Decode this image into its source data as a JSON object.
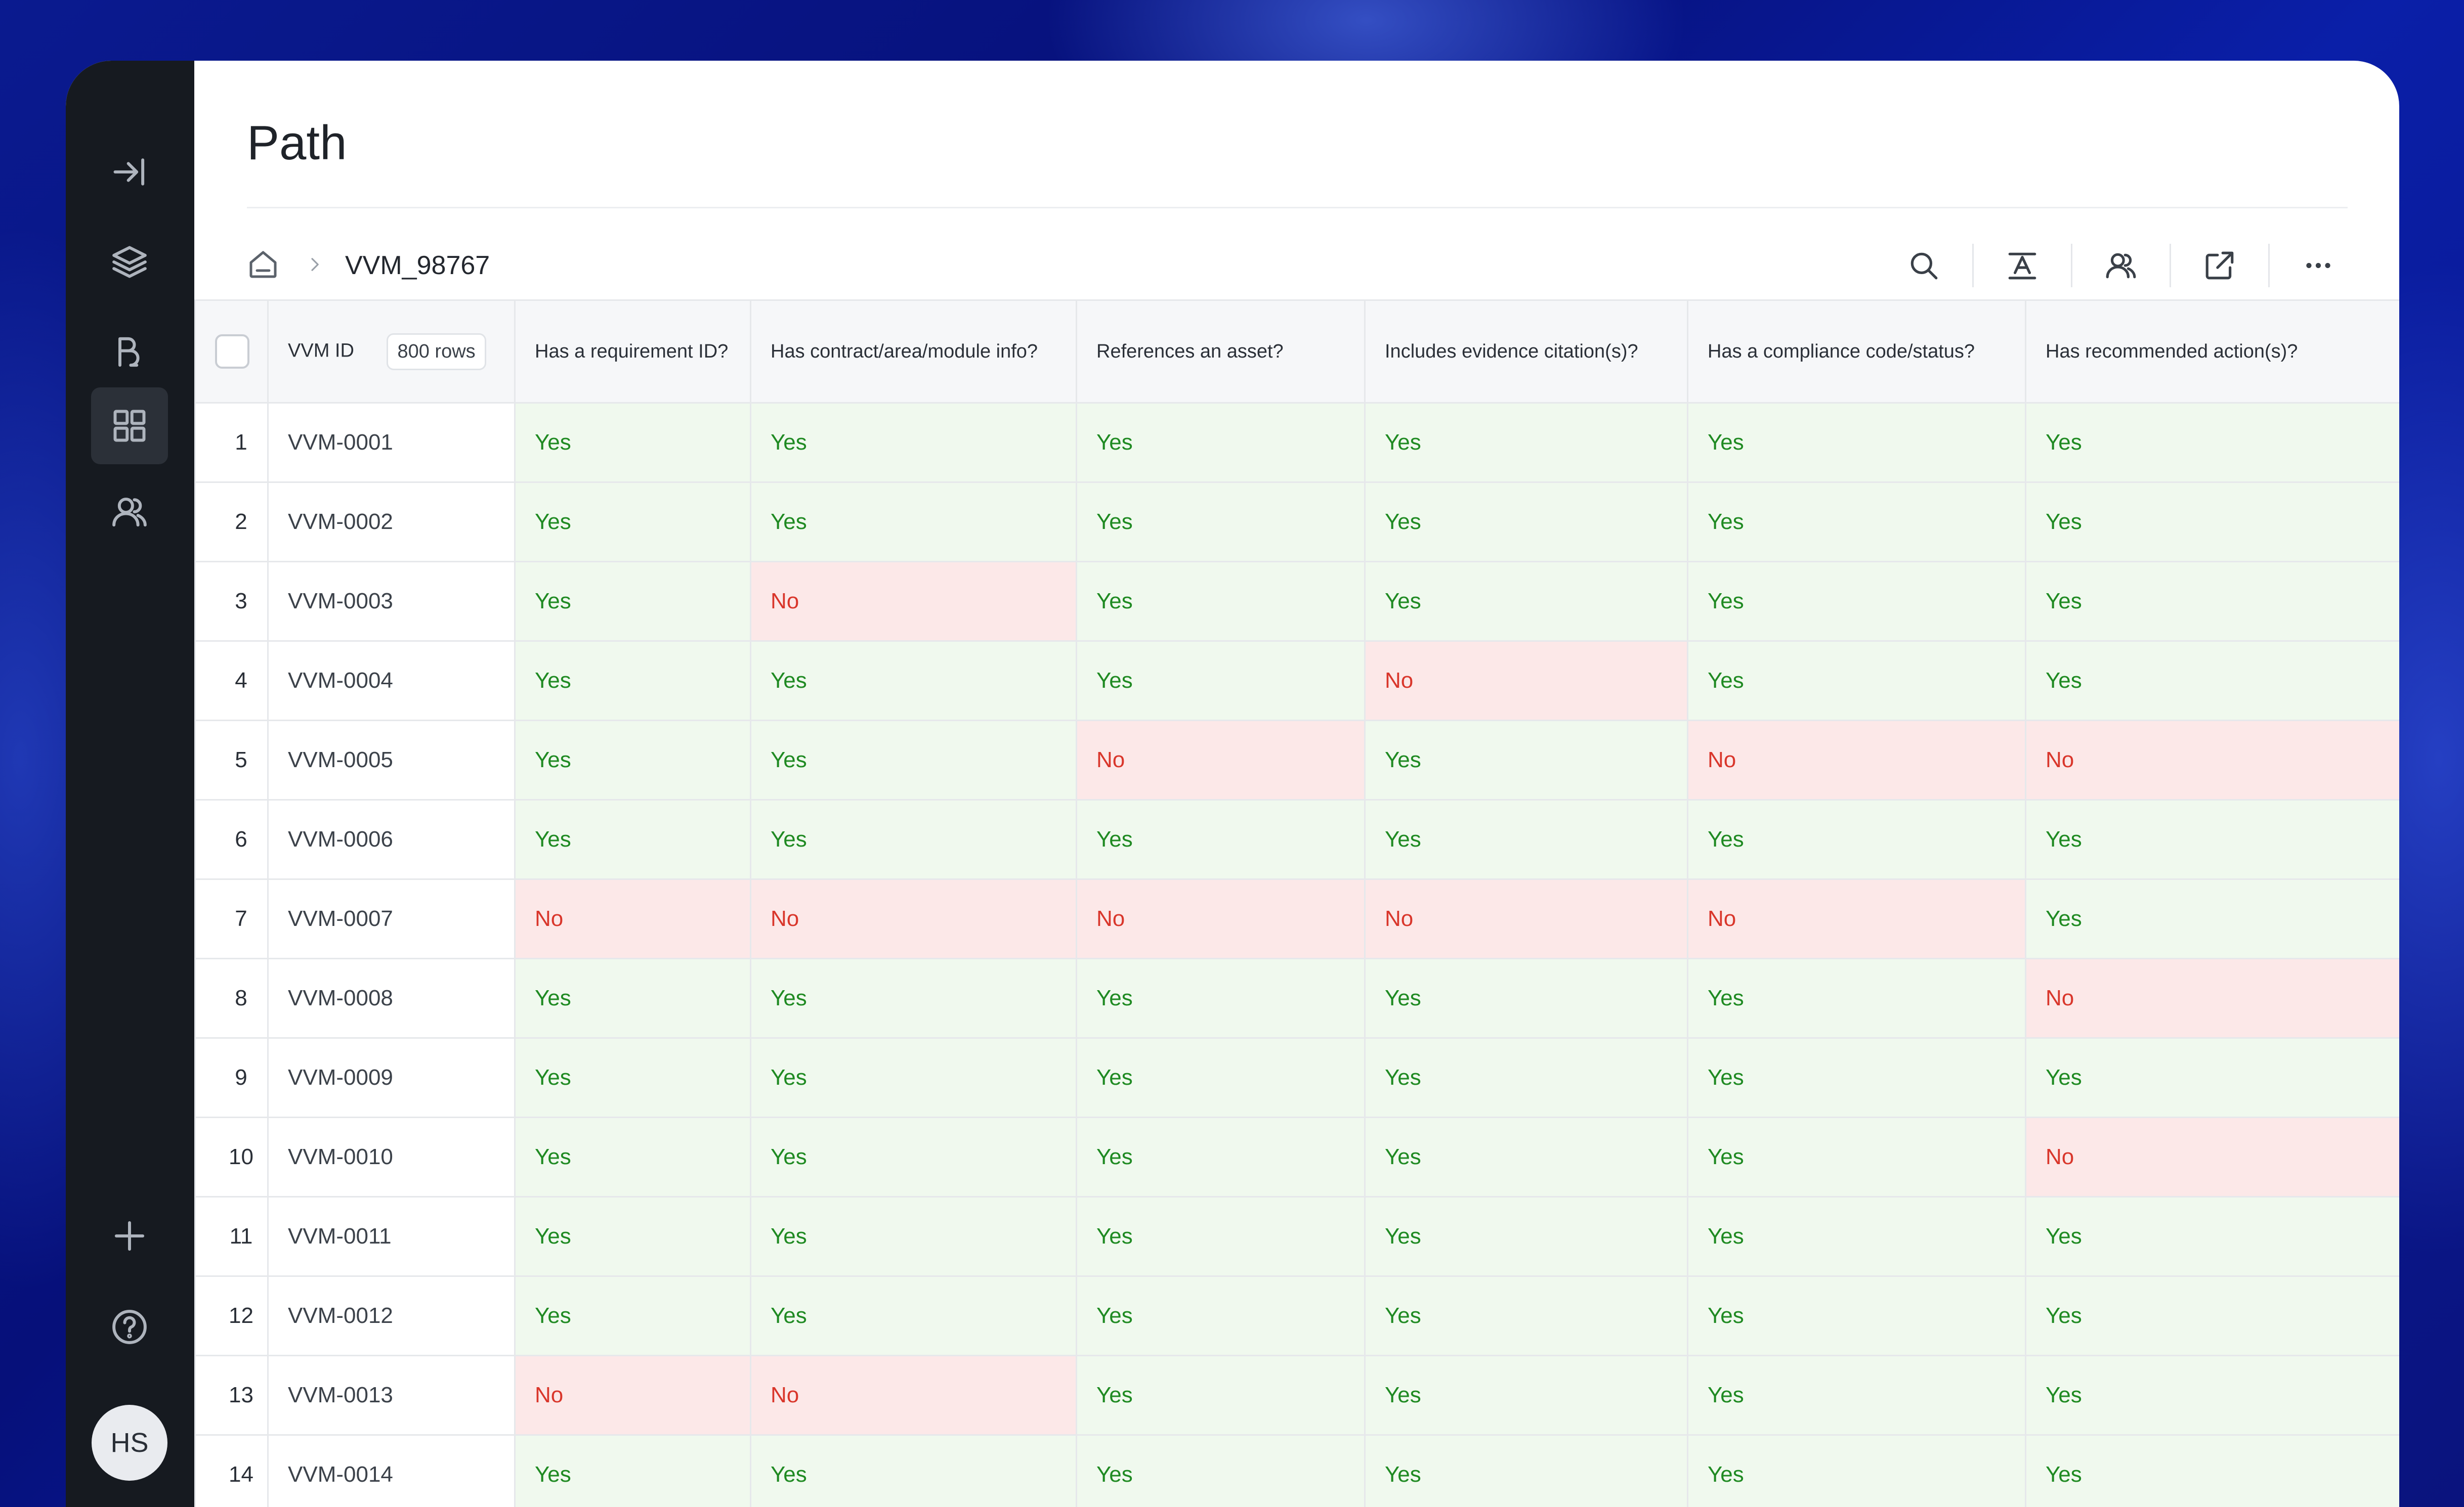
{
  "page": {
    "title": "Path"
  },
  "breadcrumb": {
    "current": "VVM_98767"
  },
  "sidebar": {
    "items": [
      {
        "icon": "collapse-sidebar-icon"
      },
      {
        "icon": "layers-icon"
      },
      {
        "icon": "workflow-icon"
      },
      {
        "icon": "grid-icon",
        "active": true
      },
      {
        "icon": "users-icon"
      },
      {
        "icon": "plus-icon"
      },
      {
        "icon": "help-icon"
      }
    ],
    "avatar": "HS"
  },
  "toolbar": [
    "search-icon",
    "text-format-icon",
    "users-icon",
    "external-link-icon",
    "more-icon"
  ],
  "table": {
    "id_header": "VVM ID",
    "rows_badge": "800 rows",
    "columns": [
      "Has a requirement ID?",
      "Has contract/area/module info?",
      "References an asset?",
      "Includes evidence citation(s)?",
      "Has a compliance code/status?",
      "Has recommended action(s)?"
    ],
    "rows": [
      {
        "n": "1",
        "id": "VVM-0001",
        "v": [
          "Yes",
          "Yes",
          "Yes",
          "Yes",
          "Yes",
          "Yes"
        ]
      },
      {
        "n": "2",
        "id": "VVM-0002",
        "v": [
          "Yes",
          "Yes",
          "Yes",
          "Yes",
          "Yes",
          "Yes"
        ]
      },
      {
        "n": "3",
        "id": "VVM-0003",
        "v": [
          "Yes",
          "No",
          "Yes",
          "Yes",
          "Yes",
          "Yes"
        ]
      },
      {
        "n": "4",
        "id": "VVM-0004",
        "v": [
          "Yes",
          "Yes",
          "Yes",
          "No",
          "Yes",
          "Yes"
        ]
      },
      {
        "n": "5",
        "id": "VVM-0005",
        "v": [
          "Yes",
          "Yes",
          "No",
          "Yes",
          "No",
          "No"
        ]
      },
      {
        "n": "6",
        "id": "VVM-0006",
        "v": [
          "Yes",
          "Yes",
          "Yes",
          "Yes",
          "Yes",
          "Yes"
        ]
      },
      {
        "n": "7",
        "id": "VVM-0007",
        "v": [
          "No",
          "No",
          "No",
          "No",
          "No",
          "Yes"
        ]
      },
      {
        "n": "8",
        "id": "VVM-0008",
        "v": [
          "Yes",
          "Yes",
          "Yes",
          "Yes",
          "Yes",
          "No"
        ]
      },
      {
        "n": "9",
        "id": "VVM-0009",
        "v": [
          "Yes",
          "Yes",
          "Yes",
          "Yes",
          "Yes",
          "Yes"
        ]
      },
      {
        "n": "10",
        "id": "VVM-0010",
        "v": [
          "Yes",
          "Yes",
          "Yes",
          "Yes",
          "Yes",
          "No"
        ]
      },
      {
        "n": "11",
        "id": "VVM-0011",
        "v": [
          "Yes",
          "Yes",
          "Yes",
          "Yes",
          "Yes",
          "Yes"
        ]
      },
      {
        "n": "12",
        "id": "VVM-0012",
        "v": [
          "Yes",
          "Yes",
          "Yes",
          "Yes",
          "Yes",
          "Yes"
        ]
      },
      {
        "n": "13",
        "id": "VVM-0013",
        "v": [
          "No",
          "No",
          "Yes",
          "Yes",
          "Yes",
          "Yes"
        ]
      },
      {
        "n": "14",
        "id": "VVM-0014",
        "v": [
          "Yes",
          "Yes",
          "Yes",
          "Yes",
          "Yes",
          "Yes"
        ]
      }
    ]
  },
  "colors": {
    "yes_bg": "#f0f9ee",
    "yes_text": "#1f8a22",
    "no_bg": "#fce8e8",
    "no_text": "#d9362b",
    "sidebar_bg": "#161a20"
  }
}
